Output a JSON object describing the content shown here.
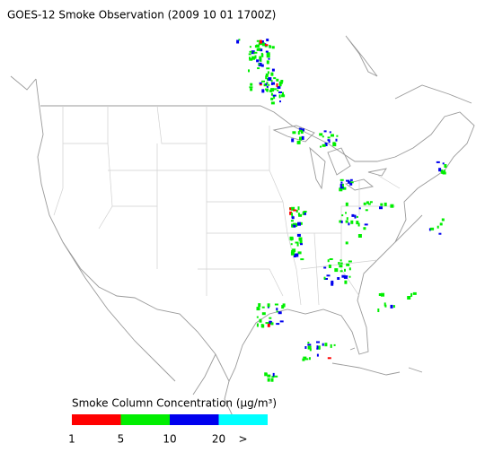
{
  "title": "GOES-12 Smoke Observation (2009 10 01  1700Z)",
  "legend": {
    "title": "Smoke Column Concentration (μg/m³)",
    "colors": [
      "#ff0000",
      "#00ee00",
      "#0000ee",
      "#00ffff"
    ],
    "labels": [
      "1",
      "5",
      "10",
      "20",
      ">"
    ]
  }
}
